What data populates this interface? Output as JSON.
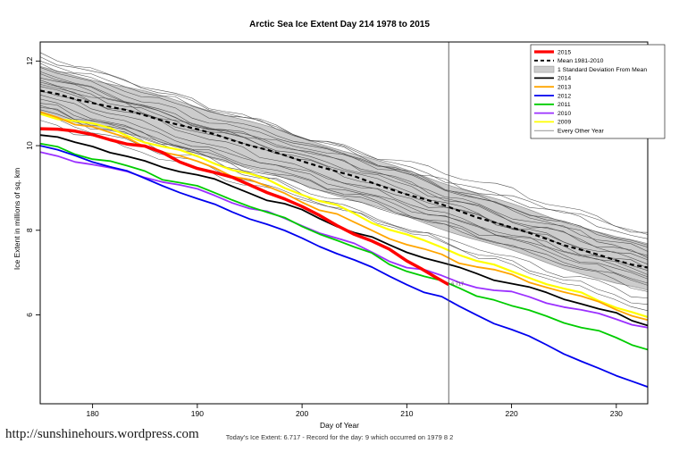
{
  "page": {
    "footer_url": "http://sunshinehours.wordpress.com",
    "footer_caption": "Today's Ice Extent: 6.717  - Record for the day: 9 which occurred on 1979 8 2"
  },
  "chart_data": {
    "type": "line",
    "title": "Arctic Sea Ice Extent Day 214 1978 to 2015",
    "xlabel": "Day of Year",
    "ylabel": "Ice Extent in millions of sq. km",
    "xlim": [
      175,
      233
    ],
    "ylim": [
      3.9,
      12.45
    ],
    "xticks": [
      180,
      190,
      200,
      210,
      220,
      230
    ],
    "yticks": [
      6,
      8,
      10,
      12
    ],
    "grid": false,
    "legend_position": "top-right",
    "vline_x": 214,
    "annotation": {
      "x": 214,
      "y": 6.717,
      "label": "6.717"
    },
    "x": [
      175,
      180,
      185,
      190,
      195,
      200,
      205,
      210,
      215,
      220,
      225,
      230,
      233
    ],
    "mean": {
      "name": "Mean 1981-2010",
      "color": "#000000",
      "values": [
        11.3,
        11.02,
        10.72,
        10.38,
        10.02,
        9.64,
        9.26,
        8.86,
        8.46,
        8.06,
        7.66,
        7.28,
        7.12
      ]
    },
    "band": {
      "name": "1 Standard Deviation From Mean",
      "halfwidth": 0.55,
      "color": "#cccccc",
      "edge_color": "#8f8f8f"
    },
    "series": [
      {
        "name": "2009",
        "color": "#FFFF00",
        "width": 2.2,
        "values": [
          10.75,
          10.5,
          10.12,
          9.72,
          9.32,
          8.88,
          8.38,
          7.88,
          7.45,
          7.02,
          6.62,
          6.22,
          5.95
        ]
      },
      {
        "name": "2013",
        "color": "#FFA500",
        "width": 1.8,
        "values": [
          10.8,
          10.42,
          10.02,
          9.62,
          9.18,
          8.68,
          8.18,
          7.68,
          7.25,
          6.92,
          6.55,
          6.15,
          5.88
        ]
      },
      {
        "name": "2010",
        "color": "#9B30FF",
        "width": 1.8,
        "values": [
          9.85,
          9.55,
          9.25,
          8.95,
          8.55,
          8.1,
          7.65,
          7.15,
          6.8,
          6.5,
          6.2,
          5.9,
          5.7
        ]
      },
      {
        "name": "2011",
        "color": "#00CC00",
        "width": 1.8,
        "values": [
          10.05,
          9.72,
          9.38,
          9.0,
          8.6,
          8.1,
          7.6,
          7.05,
          6.62,
          6.22,
          5.85,
          5.45,
          5.18
        ]
      },
      {
        "name": "2012",
        "color": "#0000EE",
        "width": 1.8,
        "values": [
          10.0,
          9.65,
          9.2,
          8.75,
          8.3,
          7.8,
          7.3,
          6.75,
          6.2,
          5.65,
          5.1,
          4.55,
          4.3
        ]
      },
      {
        "name": "2014",
        "color": "#000000",
        "width": 1.8,
        "values": [
          10.25,
          10.0,
          9.6,
          9.3,
          8.9,
          8.45,
          7.95,
          7.5,
          7.1,
          6.75,
          6.4,
          6.0,
          5.75
        ]
      },
      {
        "name": "2015",
        "color": "#FF0000",
        "width": 3.5,
        "x": [
          175,
          180,
          185,
          190,
          195,
          200,
          205,
          210,
          214
        ],
        "values": [
          10.4,
          10.28,
          9.95,
          9.5,
          9.1,
          8.55,
          7.95,
          7.3,
          6.717
        ]
      }
    ],
    "other_years": {
      "name": "Every Other Year",
      "color": "#3f3f3f",
      "start_end_pairs": [
        [
          12.2,
          7.9
        ],
        [
          12.1,
          7.6
        ],
        [
          12.0,
          7.8
        ],
        [
          11.95,
          7.4
        ],
        [
          11.85,
          7.65
        ],
        [
          11.75,
          7.3
        ],
        [
          11.7,
          7.5
        ],
        [
          11.6,
          7.1
        ],
        [
          11.55,
          7.35
        ],
        [
          11.45,
          6.95
        ],
        [
          11.4,
          7.2
        ],
        [
          11.3,
          6.85
        ],
        [
          11.2,
          7.05
        ],
        [
          11.1,
          6.7
        ],
        [
          11.0,
          6.9
        ],
        [
          10.9,
          6.55
        ],
        [
          10.85,
          6.75
        ],
        [
          10.75,
          6.4
        ],
        [
          11.5,
          7.95
        ],
        [
          10.6,
          6.1
        ],
        [
          10.95,
          6.25
        ]
      ]
    },
    "legend": [
      {
        "label": "2015",
        "swatch": "thick-line",
        "color": "#FF0000"
      },
      {
        "label": "Mean 1981-2010",
        "swatch": "dashed-line",
        "color": "#000000"
      },
      {
        "label": "1 Standard Deviation From Mean",
        "swatch": "box",
        "color": "#cccccc"
      },
      {
        "label": "2014",
        "swatch": "line",
        "color": "#000000"
      },
      {
        "label": "2013",
        "swatch": "line",
        "color": "#FFA500"
      },
      {
        "label": "2012",
        "swatch": "line",
        "color": "#0000EE"
      },
      {
        "label": "2011",
        "swatch": "line",
        "color": "#00CC00"
      },
      {
        "label": "2010",
        "swatch": "line",
        "color": "#9B30FF"
      },
      {
        "label": "2009",
        "swatch": "line",
        "color": "#FFFF00"
      },
      {
        "label": "Every Other Year",
        "swatch": "thin-line",
        "color": "#555555"
      }
    ]
  }
}
